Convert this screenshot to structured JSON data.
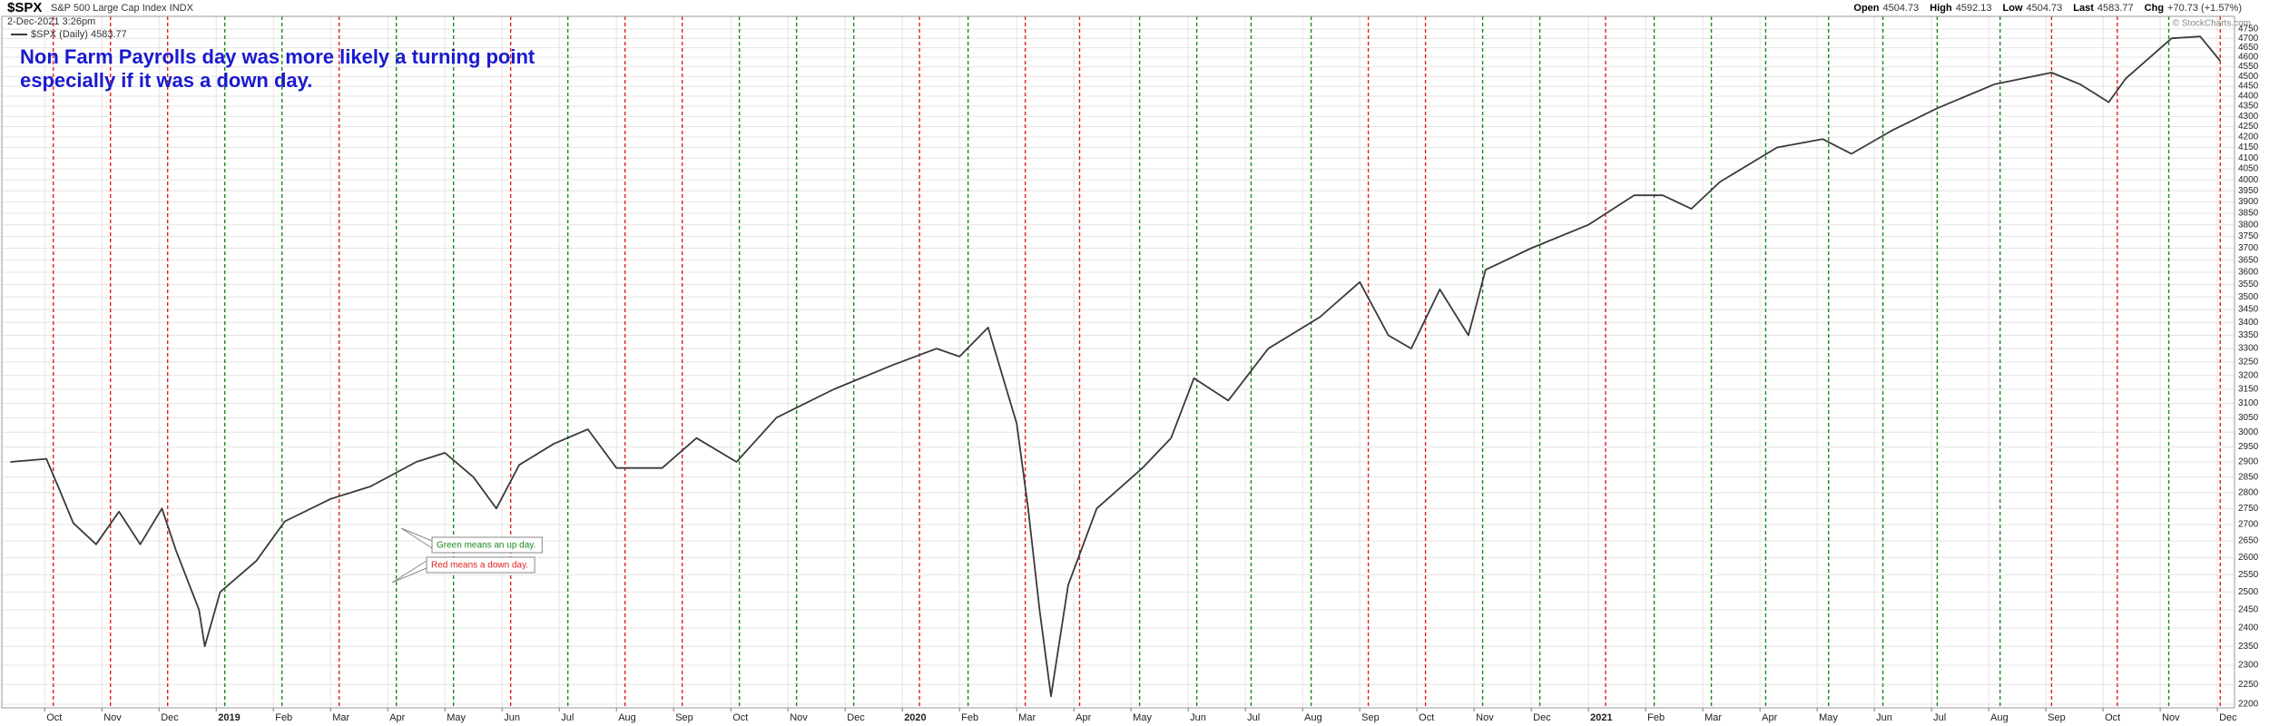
{
  "chart_data": {
    "type": "line",
    "title": "$SPX",
    "subtitle": "S&P 500 Large Cap Index INDX",
    "date": "2-Dec-2021 3:26pm",
    "credit": "© StockCharts.com",
    "quote": [
      {
        "label": "Open",
        "text": "4504.73"
      },
      {
        "label": "High",
        "text": "4592.13"
      },
      {
        "label": "Low",
        "text": "4504.73"
      },
      {
        "label": "Last",
        "text": "4583.77"
      },
      {
        "label": "Chg",
        "text": "+70.73 (+1.57%)"
      }
    ],
    "annotations": [
      "Non Farm Payrolls day was more likely a turning point",
      "especially if it was a down day."
    ],
    "callouts": [
      {
        "text": "Green means an up day.",
        "color": "#1a8a1a"
      },
      {
        "text": "Red means a down day.",
        "color": "#e02020"
      }
    ],
    "log_scale": true,
    "grid": true,
    "xlim": [
      -0.75,
      38.3
    ],
    "ylim": [
      2200,
      4750
    ],
    "xticks": [
      {
        "value": 0,
        "label": "Oct"
      },
      {
        "value": 1,
        "label": "Nov"
      },
      {
        "value": 2,
        "label": "Dec"
      },
      {
        "value": 3,
        "label": "2019"
      },
      {
        "value": 4,
        "label": "Feb"
      },
      {
        "value": 5,
        "label": "Mar"
      },
      {
        "value": 6,
        "label": "Apr"
      },
      {
        "value": 7,
        "label": "May"
      },
      {
        "value": 8,
        "label": "Jun"
      },
      {
        "value": 9,
        "label": "Jul"
      },
      {
        "value": 10,
        "label": "Aug"
      },
      {
        "value": 11,
        "label": "Sep"
      },
      {
        "value": 12,
        "label": "Oct"
      },
      {
        "value": 13,
        "label": "Nov"
      },
      {
        "value": 14,
        "label": "Dec"
      },
      {
        "value": 15,
        "label": "2020"
      },
      {
        "value": 16,
        "label": "Feb"
      },
      {
        "value": 17,
        "label": "Mar"
      },
      {
        "value": 18,
        "label": "Apr"
      },
      {
        "value": 19,
        "label": "May"
      },
      {
        "value": 20,
        "label": "Jun"
      },
      {
        "value": 21,
        "label": "Jul"
      },
      {
        "value": 22,
        "label": "Aug"
      },
      {
        "value": 23,
        "label": "Sep"
      },
      {
        "value": 24,
        "label": "Oct"
      },
      {
        "value": 25,
        "label": "Nov"
      },
      {
        "value": 26,
        "label": "Dec"
      },
      {
        "value": 27,
        "label": "2021"
      },
      {
        "value": 28,
        "label": "Feb"
      },
      {
        "value": 29,
        "label": "Mar"
      },
      {
        "value": 30,
        "label": "Apr"
      },
      {
        "value": 31,
        "label": "May"
      },
      {
        "value": 32,
        "label": "Jun"
      },
      {
        "value": 33,
        "label": "Jul"
      },
      {
        "value": 34,
        "label": "Aug"
      },
      {
        "value": 35,
        "label": "Sep"
      },
      {
        "value": 36,
        "label": "Oct"
      },
      {
        "value": 37,
        "label": "Nov"
      },
      {
        "value": 38,
        "label": "Dec"
      }
    ],
    "yticks": [
      2200,
      2250,
      2300,
      2350,
      2400,
      2450,
      2500,
      2550,
      2600,
      2650,
      2700,
      2750,
      2800,
      2850,
      2900,
      2950,
      3000,
      3050,
      3100,
      3150,
      3200,
      3250,
      3300,
      3350,
      3400,
      3450,
      3500,
      3550,
      3600,
      3650,
      3700,
      3750,
      3800,
      3850,
      3900,
      3950,
      4000,
      4050,
      4100,
      4150,
      4200,
      4250,
      4300,
      4350,
      4400,
      4450,
      4500,
      4550,
      4600,
      4650,
      4700,
      4750
    ],
    "signal_lines": {
      "x": [
        -0.85,
        0.15,
        1.15,
        2.15,
        3.15,
        4.15,
        5.15,
        6.15,
        7.15,
        8.15,
        9.15,
        10.15,
        11.15,
        12.15,
        13.15,
        14.15,
        15.3,
        16.15,
        17.15,
        18.1,
        19.15,
        20.15,
        21.1,
        22.15,
        23.15,
        24.15,
        25.15,
        26.15,
        27.3,
        28.15,
        29.15,
        30.1,
        31.2,
        32.15,
        33.1,
        34.2,
        35.1,
        36.25,
        37.15,
        38.05
      ],
      "colors": [
        "#e02020",
        "#e02020",
        "#e02020",
        "#e02020",
        "#1a8a1a",
        "#1a8a1a",
        "#e02020",
        "#1a8a1a",
        "#1a8a1a",
        "#e02020",
        "#1a8a1a",
        "#e02020",
        "#e02020",
        "#1a8a1a",
        "#1a8a1a",
        "#1a8a1a",
        "#e02020",
        "#1a8a1a",
        "#e02020",
        "#e02020",
        "#1a8a1a",
        "#1a8a1a",
        "#1a8a1a",
        "#1a8a1a",
        "#e02020",
        "#e02020",
        "#1a8a1a",
        "#1a8a1a",
        "#e02020",
        "#1a8a1a",
        "#1a8a1a",
        "#1a8a1a",
        "#1a8a1a",
        "#1a8a1a",
        "#1a8a1a",
        "#1a8a1a",
        "#e02020",
        "#e02020",
        "#1a8a1a",
        "#e02020"
      ]
    },
    "series": [
      {
        "name": "$SPX (Daily) 4583.77",
        "color": "#3a3a3a",
        "x": [
          -0.6,
          0.03,
          0.28,
          0.5,
          0.9,
          1.3,
          1.67,
          2.05,
          2.3,
          2.7,
          2.8,
          3.07,
          3.7,
          4.2,
          5.0,
          5.7,
          6.5,
          7.0,
          7.5,
          7.9,
          8.3,
          8.9,
          9.5,
          10.0,
          10.8,
          11.4,
          12.1,
          12.8,
          13.8,
          14.85,
          15.6,
          16.0,
          16.5,
          16.75,
          17.0,
          17.2,
          17.4,
          17.6,
          17.9,
          18.4,
          19.2,
          19.7,
          20.1,
          20.7,
          21.4,
          22.3,
          23.0,
          23.5,
          23.9,
          24.4,
          24.9,
          25.2,
          26.0,
          27.0,
          27.8,
          28.3,
          28.8,
          29.3,
          30.3,
          31.1,
          31.6,
          32.3,
          33.1,
          34.1,
          35.1,
          35.6,
          36.1,
          36.4,
          37.2,
          37.7,
          38.05
        ],
        "values": [
          2900,
          2910,
          2800,
          2705,
          2640,
          2740,
          2640,
          2750,
          2620,
          2450,
          2350,
          2500,
          2590,
          2710,
          2780,
          2820,
          2900,
          2930,
          2850,
          2750,
          2890,
          2960,
          3010,
          2880,
          2880,
          2980,
          2900,
          3050,
          3150,
          3240,
          3300,
          3270,
          3380,
          3200,
          3030,
          2750,
          2450,
          2220,
          2520,
          2750,
          2880,
          2980,
          3190,
          3110,
          3300,
          3420,
          3560,
          3350,
          3300,
          3530,
          3350,
          3610,
          3700,
          3800,
          3930,
          3930,
          3870,
          3990,
          4150,
          4190,
          4120,
          4230,
          4340,
          4460,
          4520,
          4460,
          4370,
          4490,
          4700,
          4710,
          4580
        ]
      }
    ]
  }
}
